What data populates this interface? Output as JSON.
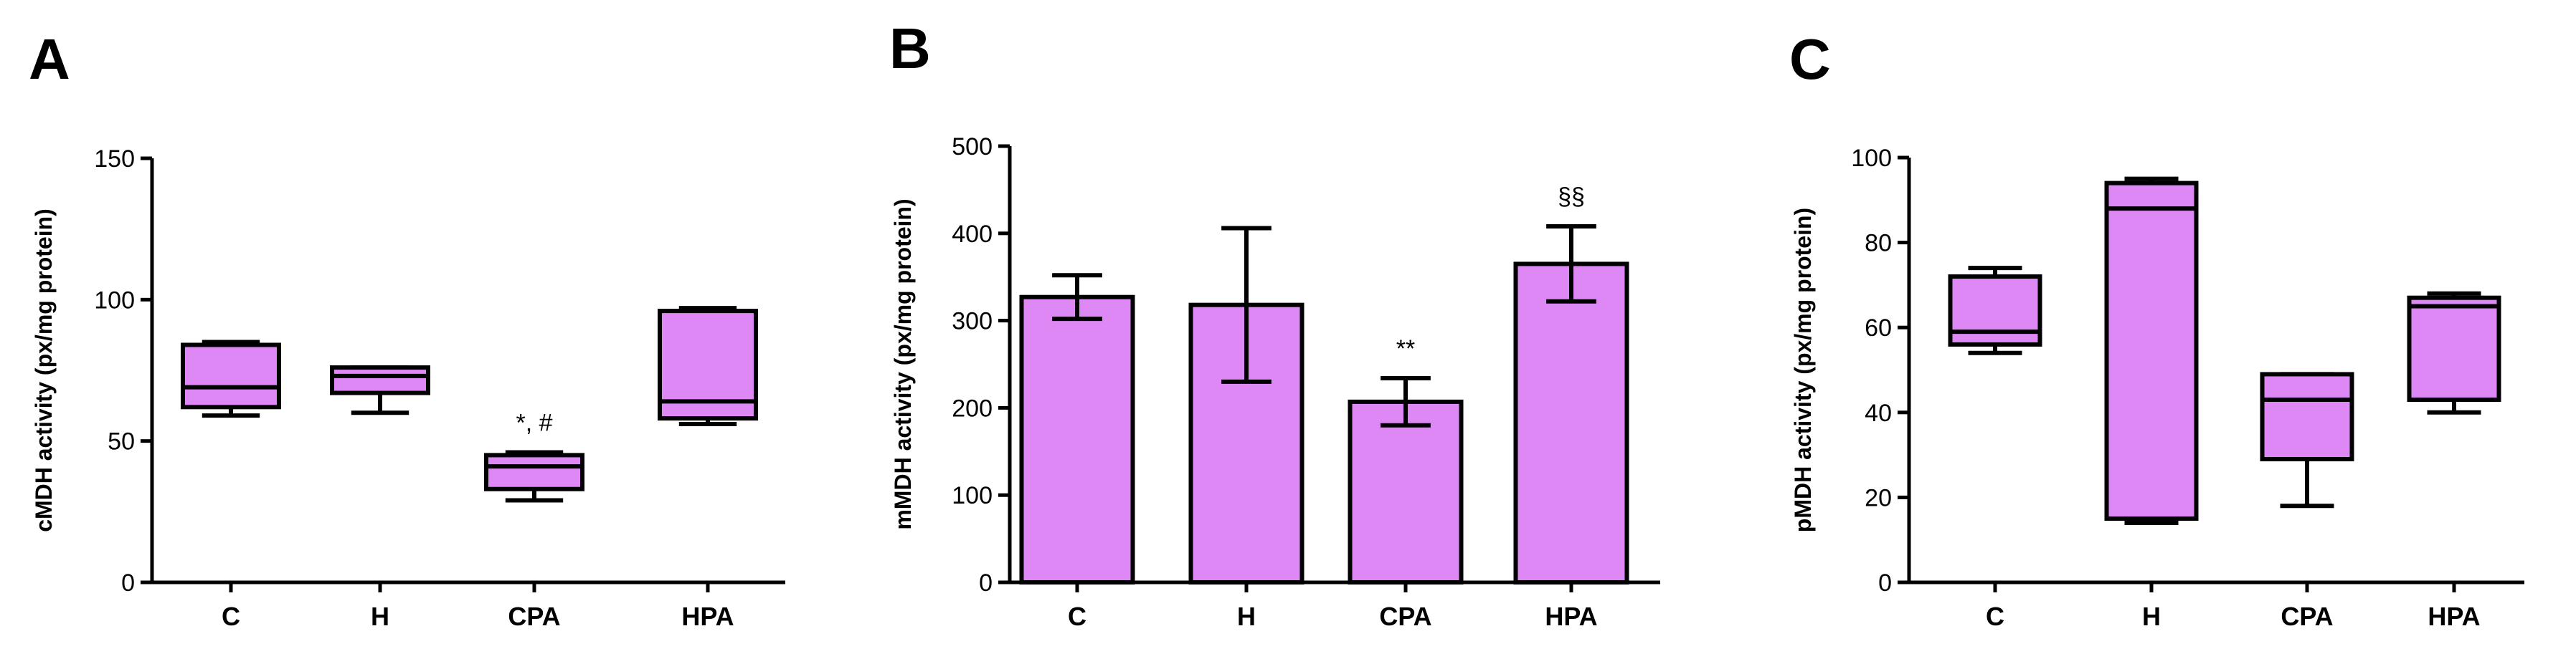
{
  "colors": {
    "fill": "#dd88f5",
    "stroke": "#000000"
  },
  "chart_data": [
    {
      "panel": "A",
      "type": "box",
      "ylabel": "cMDH activity (px/mg protein)",
      "ylim": [
        0,
        150
      ],
      "yticks": [
        "0",
        "50",
        "100",
        "150"
      ],
      "categories": [
        "C",
        "H",
        "CPA",
        "HPA"
      ],
      "boxes": [
        {
          "min": 59,
          "q1": 62,
          "median": 69,
          "q3": 84,
          "max": 85
        },
        {
          "min": 60,
          "q1": 67,
          "median": 73,
          "q3": 76,
          "max": 76
        },
        {
          "min": 29,
          "q1": 33,
          "median": 41,
          "q3": 45,
          "max": 46
        },
        {
          "min": 56,
          "q1": 58,
          "median": 64,
          "q3": 96,
          "max": 97
        }
      ],
      "annotations": [
        {
          "category": "CPA",
          "text": "*, #"
        }
      ]
    },
    {
      "panel": "B",
      "type": "bar",
      "ylabel": "mMDH activity (px/mg protein)",
      "ylim": [
        0,
        500
      ],
      "yticks": [
        "0",
        "100",
        "200",
        "300",
        "400",
        "500"
      ],
      "categories": [
        "C",
        "H",
        "CPA",
        "HPA"
      ],
      "values": [
        327,
        318,
        207,
        365
      ],
      "errors": [
        25,
        88,
        27,
        43
      ],
      "annotations": [
        {
          "category": "CPA",
          "text": "**"
        },
        {
          "category": "HPA",
          "text": "§§"
        }
      ]
    },
    {
      "panel": "C",
      "type": "box",
      "ylabel": "pMDH activity (px/mg protein)",
      "ylim": [
        0,
        100
      ],
      "yticks": [
        "0",
        "20",
        "40",
        "60",
        "80",
        "100"
      ],
      "categories": [
        "C",
        "H",
        "CPA",
        "HPA"
      ],
      "boxes": [
        {
          "min": 54,
          "q1": 56,
          "median": 59,
          "q3": 72,
          "max": 74
        },
        {
          "min": 14,
          "q1": 15,
          "median": 88,
          "q3": 94,
          "max": 95
        },
        {
          "min": 18,
          "q1": 29,
          "median": 43,
          "q3": 49,
          "max": 49
        },
        {
          "min": 40,
          "q1": 43,
          "median": 65,
          "q3": 67,
          "max": 68
        }
      ],
      "annotations": []
    }
  ]
}
